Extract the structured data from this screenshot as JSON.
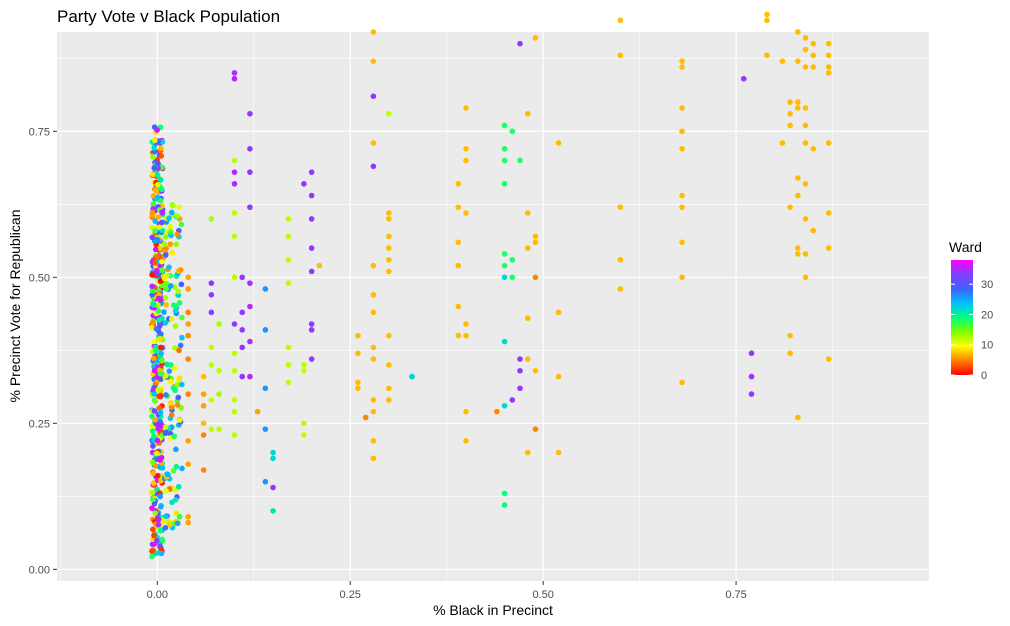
{
  "chart_data": {
    "type": "scatter",
    "title": "Party Vote v Black Population",
    "xlabel": "% Black in Precinct",
    "ylabel": "% Precinct Vote for Republican",
    "xlim": [
      -0.13,
      1.0
    ],
    "ylim": [
      -0.02,
      0.92
    ],
    "x_ticks": [
      0.0,
      0.25,
      0.5,
      0.75
    ],
    "x_tick_labels": [
      "0.00",
      "0.25",
      "0.50",
      "0.75"
    ],
    "y_ticks": [
      0.0,
      0.25,
      0.5,
      0.75
    ],
    "y_tick_labels": [
      "0.00",
      "0.25",
      "0.50",
      "0.75"
    ],
    "grid": true,
    "legend": {
      "title": "Ward",
      "position": "right",
      "type": "colorbar",
      "range": [
        0,
        38
      ],
      "ticks": [
        0,
        10,
        20,
        30
      ],
      "tick_labels": [
        "0",
        "10",
        "20",
        "30"
      ],
      "colors": [
        "#ff0000",
        "#ff8000",
        "#ffff00",
        "#80ff00",
        "#00ff80",
        "#00c0ff",
        "#4060ff",
        "#8040ff",
        "#ff00ff"
      ]
    },
    "colors": {
      "panel_background": "#ebebeb",
      "grid_major": "#ffffff",
      "tick_text": "#4d4d4d"
    },
    "clusters": [
      {
        "x": 0.0,
        "spread": 0.007,
        "ymin": 0.02,
        "ymax": 0.76,
        "n": 420,
        "wards": [
          0,
          38
        ]
      },
      {
        "x": 0.02,
        "spread": 0.012,
        "ymin": 0.07,
        "ymax": 0.63,
        "n": 140,
        "wards": [
          4,
          30
        ]
      }
    ],
    "points": [
      [
        0.04,
        0.5,
        6
      ],
      [
        0.04,
        0.48,
        6
      ],
      [
        0.04,
        0.44,
        5
      ],
      [
        0.04,
        0.42,
        6
      ],
      [
        0.04,
        0.4,
        5
      ],
      [
        0.04,
        0.36,
        5
      ],
      [
        0.04,
        0.3,
        5
      ],
      [
        0.04,
        0.22,
        6
      ],
      [
        0.04,
        0.18,
        6
      ],
      [
        0.04,
        0.09,
        6
      ],
      [
        0.04,
        0.08,
        6
      ],
      [
        0.06,
        0.33,
        7
      ],
      [
        0.06,
        0.3,
        6
      ],
      [
        0.06,
        0.28,
        6
      ],
      [
        0.06,
        0.25,
        7
      ],
      [
        0.06,
        0.23,
        5
      ],
      [
        0.06,
        0.17,
        5
      ],
      [
        0.07,
        0.6,
        13
      ],
      [
        0.07,
        0.49,
        34
      ],
      [
        0.07,
        0.47,
        34
      ],
      [
        0.07,
        0.44,
        33
      ],
      [
        0.07,
        0.38,
        12
      ],
      [
        0.07,
        0.35,
        12
      ],
      [
        0.07,
        0.29,
        12
      ],
      [
        0.07,
        0.24,
        12
      ],
      [
        0.08,
        0.42,
        13
      ],
      [
        0.08,
        0.34,
        12
      ],
      [
        0.08,
        0.3,
        13
      ],
      [
        0.08,
        0.24,
        12
      ],
      [
        0.1,
        0.85,
        35
      ],
      [
        0.1,
        0.84,
        35
      ],
      [
        0.1,
        0.7,
        12
      ],
      [
        0.1,
        0.68,
        35
      ],
      [
        0.1,
        0.66,
        35
      ],
      [
        0.1,
        0.61,
        12
      ],
      [
        0.1,
        0.57,
        12
      ],
      [
        0.1,
        0.5,
        12
      ],
      [
        0.1,
        0.42,
        34
      ],
      [
        0.1,
        0.37,
        12
      ],
      [
        0.1,
        0.34,
        12
      ],
      [
        0.1,
        0.29,
        12
      ],
      [
        0.1,
        0.27,
        12
      ],
      [
        0.1,
        0.23,
        12
      ],
      [
        0.11,
        0.5,
        34
      ],
      [
        0.11,
        0.44,
        34
      ],
      [
        0.11,
        0.41,
        34
      ],
      [
        0.11,
        0.38,
        34
      ],
      [
        0.11,
        0.33,
        34
      ],
      [
        0.12,
        0.78,
        34
      ],
      [
        0.12,
        0.72,
        34
      ],
      [
        0.12,
        0.68,
        34
      ],
      [
        0.12,
        0.62,
        34
      ],
      [
        0.12,
        0.49,
        35
      ],
      [
        0.12,
        0.45,
        35
      ],
      [
        0.12,
        0.39,
        35
      ],
      [
        0.12,
        0.33,
        35
      ],
      [
        0.13,
        0.27,
        6
      ],
      [
        0.14,
        0.48,
        26
      ],
      [
        0.14,
        0.41,
        26
      ],
      [
        0.14,
        0.31,
        26
      ],
      [
        0.14,
        0.24,
        26
      ],
      [
        0.14,
        0.15,
        26
      ],
      [
        0.15,
        0.2,
        22
      ],
      [
        0.15,
        0.19,
        22
      ],
      [
        0.15,
        0.1,
        21
      ],
      [
        0.15,
        0.14,
        34
      ],
      [
        0.17,
        0.6,
        12
      ],
      [
        0.17,
        0.57,
        12
      ],
      [
        0.17,
        0.53,
        12
      ],
      [
        0.17,
        0.49,
        12
      ],
      [
        0.17,
        0.38,
        12
      ],
      [
        0.17,
        0.35,
        12
      ],
      [
        0.17,
        0.32,
        12
      ],
      [
        0.19,
        0.66,
        34
      ],
      [
        0.19,
        0.35,
        12
      ],
      [
        0.19,
        0.34,
        12
      ],
      [
        0.19,
        0.25,
        12
      ],
      [
        0.19,
        0.23,
        12
      ],
      [
        0.2,
        0.68,
        34
      ],
      [
        0.2,
        0.64,
        34
      ],
      [
        0.2,
        0.6,
        34
      ],
      [
        0.2,
        0.55,
        34
      ],
      [
        0.2,
        0.51,
        34
      ],
      [
        0.2,
        0.42,
        34
      ],
      [
        0.2,
        0.41,
        34
      ],
      [
        0.2,
        0.36,
        34
      ],
      [
        0.21,
        0.52,
        7
      ],
      [
        0.26,
        0.4,
        7
      ],
      [
        0.26,
        0.37,
        7
      ],
      [
        0.26,
        0.32,
        7
      ],
      [
        0.26,
        0.31,
        7
      ],
      [
        0.27,
        0.26,
        5
      ],
      [
        0.28,
        0.92,
        7
      ],
      [
        0.28,
        0.87,
        7
      ],
      [
        0.28,
        0.81,
        34
      ],
      [
        0.28,
        0.73,
        7
      ],
      [
        0.28,
        0.69,
        34
      ],
      [
        0.28,
        0.52,
        7
      ],
      [
        0.28,
        0.47,
        7
      ],
      [
        0.28,
        0.44,
        7
      ],
      [
        0.28,
        0.38,
        7
      ],
      [
        0.28,
        0.36,
        7
      ],
      [
        0.28,
        0.29,
        7
      ],
      [
        0.28,
        0.27,
        7
      ],
      [
        0.28,
        0.22,
        7
      ],
      [
        0.28,
        0.19,
        7
      ],
      [
        0.3,
        0.78,
        12
      ],
      [
        0.3,
        0.61,
        7
      ],
      [
        0.3,
        0.6,
        7
      ],
      [
        0.3,
        0.57,
        7
      ],
      [
        0.3,
        0.55,
        7
      ],
      [
        0.3,
        0.53,
        7
      ],
      [
        0.3,
        0.51,
        7
      ],
      [
        0.3,
        0.4,
        7
      ],
      [
        0.3,
        0.35,
        7
      ],
      [
        0.3,
        0.31,
        7
      ],
      [
        0.3,
        0.29,
        7
      ],
      [
        0.33,
        0.33,
        22
      ],
      [
        0.33,
        0.33,
        22
      ],
      [
        0.39,
        0.66,
        7
      ],
      [
        0.39,
        0.62,
        7
      ],
      [
        0.39,
        0.56,
        7
      ],
      [
        0.39,
        0.52,
        7
      ],
      [
        0.39,
        0.45,
        7
      ],
      [
        0.39,
        0.4,
        7
      ],
      [
        0.4,
        0.79,
        7
      ],
      [
        0.4,
        0.72,
        7
      ],
      [
        0.4,
        0.7,
        7
      ],
      [
        0.4,
        0.61,
        7
      ],
      [
        0.4,
        0.42,
        7
      ],
      [
        0.4,
        0.4,
        7
      ],
      [
        0.4,
        0.27,
        7
      ],
      [
        0.4,
        0.22,
        7
      ],
      [
        0.44,
        0.27,
        5
      ],
      [
        0.45,
        0.76,
        18
      ],
      [
        0.45,
        0.72,
        18
      ],
      [
        0.45,
        0.7,
        18
      ],
      [
        0.45,
        0.66,
        18
      ],
      [
        0.45,
        0.54,
        18
      ],
      [
        0.45,
        0.52,
        18
      ],
      [
        0.45,
        0.5,
        22
      ],
      [
        0.45,
        0.39,
        22
      ],
      [
        0.45,
        0.28,
        22
      ],
      [
        0.45,
        0.13,
        19
      ],
      [
        0.45,
        0.11,
        19
      ],
      [
        0.46,
        0.75,
        18
      ],
      [
        0.46,
        0.53,
        18
      ],
      [
        0.46,
        0.5,
        18
      ],
      [
        0.46,
        0.29,
        34
      ],
      [
        0.47,
        0.9,
        34
      ],
      [
        0.47,
        0.7,
        18
      ],
      [
        0.47,
        0.36,
        34
      ],
      [
        0.47,
        0.34,
        34
      ],
      [
        0.47,
        0.31,
        34
      ],
      [
        0.48,
        0.78,
        7
      ],
      [
        0.48,
        0.61,
        7
      ],
      [
        0.48,
        0.55,
        7
      ],
      [
        0.48,
        0.43,
        7
      ],
      [
        0.48,
        0.36,
        7
      ],
      [
        0.48,
        0.2,
        7
      ],
      [
        0.49,
        0.91,
        7
      ],
      [
        0.49,
        0.57,
        7
      ],
      [
        0.49,
        0.56,
        7
      ],
      [
        0.49,
        0.5,
        5
      ],
      [
        0.49,
        0.34,
        7
      ],
      [
        0.49,
        0.24,
        5
      ],
      [
        0.52,
        0.73,
        7
      ],
      [
        0.52,
        0.44,
        7
      ],
      [
        0.52,
        0.33,
        7
      ],
      [
        0.52,
        0.2,
        7
      ],
      [
        0.6,
        0.94,
        7
      ],
      [
        0.6,
        0.88,
        7
      ],
      [
        0.6,
        0.62,
        7
      ],
      [
        0.6,
        0.53,
        7
      ],
      [
        0.6,
        0.48,
        7
      ],
      [
        0.68,
        0.87,
        7
      ],
      [
        0.68,
        0.86,
        7
      ],
      [
        0.68,
        0.79,
        7
      ],
      [
        0.68,
        0.75,
        7
      ],
      [
        0.68,
        0.72,
        7
      ],
      [
        0.68,
        0.64,
        7
      ],
      [
        0.68,
        0.62,
        7
      ],
      [
        0.68,
        0.56,
        7
      ],
      [
        0.68,
        0.5,
        7
      ],
      [
        0.68,
        0.32,
        7
      ],
      [
        0.76,
        0.84,
        34
      ],
      [
        0.77,
        0.37,
        34
      ],
      [
        0.77,
        0.33,
        34
      ],
      [
        0.77,
        0.3,
        34
      ],
      [
        0.79,
        0.95,
        7
      ],
      [
        0.79,
        0.94,
        7
      ],
      [
        0.79,
        0.88,
        7
      ],
      [
        0.81,
        0.87,
        7
      ],
      [
        0.81,
        0.73,
        7
      ],
      [
        0.82,
        0.8,
        7
      ],
      [
        0.82,
        0.78,
        7
      ],
      [
        0.82,
        0.76,
        7
      ],
      [
        0.82,
        0.62,
        7
      ],
      [
        0.82,
        0.4,
        7
      ],
      [
        0.82,
        0.37,
        7
      ],
      [
        0.83,
        0.92,
        7
      ],
      [
        0.83,
        0.87,
        7
      ],
      [
        0.83,
        0.8,
        7
      ],
      [
        0.83,
        0.79,
        7
      ],
      [
        0.83,
        0.67,
        7
      ],
      [
        0.83,
        0.64,
        7
      ],
      [
        0.83,
        0.55,
        7
      ],
      [
        0.83,
        0.54,
        7
      ],
      [
        0.83,
        0.26,
        7
      ],
      [
        0.84,
        0.91,
        7
      ],
      [
        0.84,
        0.89,
        7
      ],
      [
        0.84,
        0.86,
        7
      ],
      [
        0.84,
        0.79,
        7
      ],
      [
        0.84,
        0.76,
        7
      ],
      [
        0.84,
        0.73,
        7
      ],
      [
        0.84,
        0.66,
        7
      ],
      [
        0.84,
        0.6,
        7
      ],
      [
        0.84,
        0.54,
        7
      ],
      [
        0.84,
        0.5,
        7
      ],
      [
        0.85,
        0.9,
        7
      ],
      [
        0.85,
        0.88,
        7
      ],
      [
        0.85,
        0.86,
        7
      ],
      [
        0.85,
        0.72,
        7
      ],
      [
        0.85,
        0.58,
        7
      ],
      [
        0.87,
        0.9,
        7
      ],
      [
        0.87,
        0.88,
        7
      ],
      [
        0.87,
        0.86,
        7
      ],
      [
        0.87,
        0.85,
        7
      ],
      [
        0.87,
        0.73,
        7
      ],
      [
        0.87,
        0.61,
        7
      ],
      [
        0.87,
        0.55,
        7
      ],
      [
        0.87,
        0.36,
        7
      ]
    ]
  }
}
